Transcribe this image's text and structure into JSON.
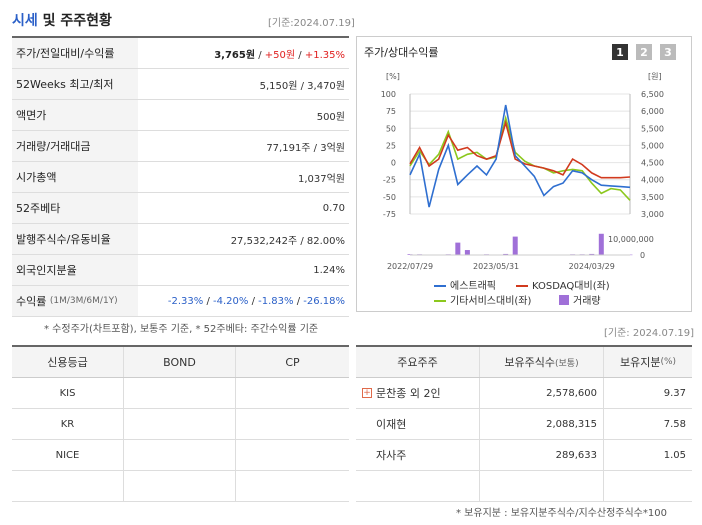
{
  "header": {
    "title_part1": "시세",
    "title_part2": " 및 ",
    "title_part3": "주주현황",
    "date": "[기준:2024.07.19]"
  },
  "market_table": [
    {
      "label": "주가/전일대비/수익률",
      "value_price": "3,765원",
      "value_sep1": " / ",
      "value_change": "+50원",
      "value_sep2": " / ",
      "value_rate": "+1.35%"
    },
    {
      "label": "52Weeks 최고/최저",
      "value": "5,150원 / 3,470원"
    },
    {
      "label": "액면가",
      "value": "500원"
    },
    {
      "label": "거래량/거래대금",
      "value": "77,191주 / 3억원"
    },
    {
      "label": "시가총액",
      "value": "1,037억원"
    },
    {
      "label": "52주베타",
      "value": "0.70"
    },
    {
      "label": "발행주식수/유동비율",
      "value": "27,532,242주 / 82.00%"
    },
    {
      "label": "외국인지분율",
      "value": "1.24%"
    },
    {
      "label": "수익률",
      "label_sub": "(1M/3M/6M/1Y)",
      "returns": [
        "-2.33%",
        "-4.20%",
        "-1.83%",
        "-26.18%"
      ]
    }
  ],
  "market_note": "* 수정주가(차트포함), 보통주 기준, * 52주베타: 주간수익률 기준",
  "chart_panel": {
    "title": "주가/상대수익률",
    "tabs": [
      "1",
      "2",
      "3"
    ],
    "left_unit": "[%]",
    "right_unit": "[원]",
    "volume_tick": "10,000,000",
    "volume_zero": "0",
    "legend": [
      "에스트래픽",
      "KOSDAQ대비(좌)",
      "기타서비스대비(좌)",
      "거래량"
    ],
    "colors": {
      "stock": "#2f6fd0",
      "kosdaq": "#d13a1e",
      "sector": "#8cc81e",
      "volume": "#a070d8"
    }
  },
  "chart_data": {
    "type": "line",
    "x": [
      "2022/07/29",
      "2022/09",
      "2022/10",
      "2022/11",
      "2022/12",
      "2023/01",
      "2023/02",
      "2023/03",
      "2023/04",
      "2023/05/31",
      "2023/06",
      "2023/07",
      "2023/08",
      "2023/09",
      "2023/10",
      "2023/11",
      "2023/12",
      "2024/01",
      "2024/02",
      "2024/03/29",
      "2024/04",
      "2024/05",
      "2024/06",
      "2024/07"
    ],
    "x_ticks": [
      "2022/07/29",
      "2023/05/31",
      "2024/03/29"
    ],
    "y_left_ticks": [
      "100",
      "75",
      "50",
      "25",
      "0",
      "-25",
      "-50",
      "-75"
    ],
    "y_right_ticks": [
      "6,500",
      "6,000",
      "5,500",
      "5,000",
      "4,500",
      "4,000",
      "3,500",
      "3,000"
    ],
    "ylim_left": [
      -85,
      100
    ],
    "series": [
      {
        "name": "에스트래픽",
        "values": [
          -18,
          12,
          -65,
          -10,
          25,
          -32,
          -18,
          -5,
          -18,
          5,
          84,
          10,
          -5,
          -20,
          -48,
          -35,
          -30,
          -12,
          -15,
          -25,
          -33,
          -34,
          -35,
          -36
        ]
      },
      {
        "name": "KOSDAQ대비(좌)",
        "values": [
          -2,
          22,
          -5,
          5,
          40,
          18,
          22,
          10,
          5,
          10,
          58,
          5,
          -2,
          -5,
          -8,
          -12,
          -18,
          5,
          -3,
          -15,
          -22,
          -22,
          -22,
          -21
        ]
      },
      {
        "name": "기타서비스대비(좌)",
        "values": [
          -5,
          17,
          -3,
          12,
          45,
          5,
          12,
          15,
          5,
          8,
          65,
          15,
          2,
          -5,
          -8,
          -15,
          -12,
          -10,
          -12,
          -30,
          -45,
          -38,
          -40,
          -55
        ]
      }
    ],
    "volume": {
      "name": "거래량",
      "values": [
        0.2,
        0.2,
        0.1,
        0.1,
        0.2,
        3.5,
        1.4,
        0.1,
        0.2,
        0.1,
        0.3,
        5.2,
        0.1,
        0.1,
        0.1,
        0.1,
        0.1,
        0.2,
        0.2,
        0.3,
        6.0,
        0.1,
        0.1,
        0.1
      ],
      "max": 6.5
    }
  },
  "ratings": {
    "headers": [
      "신용등급",
      "BOND",
      "CP"
    ],
    "rows": [
      [
        "KIS",
        "",
        ""
      ],
      [
        "KR",
        "",
        ""
      ],
      [
        "NICE",
        "",
        ""
      ],
      [
        "",
        "",
        ""
      ]
    ]
  },
  "holders_date": "[기준: 2024.07.19]",
  "holders": {
    "headers": [
      "주요주주",
      "보유주식수",
      "(보통)",
      "보유지분",
      "(%)"
    ],
    "rows": [
      {
        "name": "문찬종 외 2인",
        "shares": "2,578,600",
        "pct": "9.37",
        "expandable": true
      },
      {
        "name": "이재현",
        "shares": "2,088,315",
        "pct": "7.58",
        "expandable": false
      },
      {
        "name": "자사주",
        "shares": "289,633",
        "pct": "1.05",
        "expandable": false
      }
    ]
  },
  "holders_note": "* 보유지분 : 보유지분주식수/지수산정주식수*100"
}
